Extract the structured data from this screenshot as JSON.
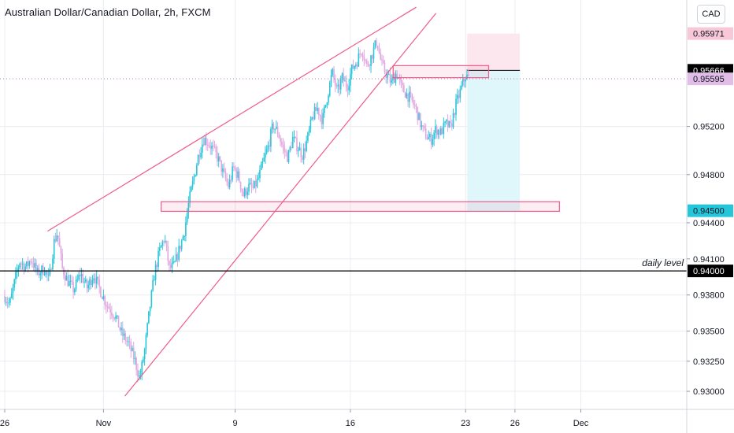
{
  "title": "Australian Dollar/Canadian Dollar, 2h, FXCM",
  "currency": "CAD",
  "colors": {
    "up": "#26c6da",
    "down": "#e1a6e0",
    "line": "#ef5b8a",
    "level": "#000000",
    "grid": "#e9ecf0",
    "target_zone": "#dff6fa",
    "stop_zone": "#fde7ef"
  },
  "chart_data": {
    "type": "candlestick",
    "x_tick_labels": [
      {
        "label": "26",
        "day": 0
      },
      {
        "label": "Nov",
        "day": 6
      },
      {
        "label": "9",
        "day": 14
      },
      {
        "label": "16",
        "day": 21
      },
      {
        "label": "23",
        "day": 28
      },
      {
        "label": "26",
        "day": 31
      },
      {
        "label": "Dec",
        "day": 35
      }
    ],
    "y_ticks": [
      0.93,
      0.9325,
      0.935,
      0.938,
      0.941,
      0.944,
      0.948,
      0.952
    ],
    "y_range": [
      0.9285,
      0.9625
    ],
    "price_labels": [
      {
        "text": "0.95971",
        "value": 0.95971,
        "bg": "#f8c7d8",
        "fg": "#131722"
      },
      {
        "text": "0.95666",
        "value": 0.95666,
        "bg": "#000000",
        "fg": "#ffffff"
      },
      {
        "text": "0.95595",
        "value": 0.95595,
        "bg": "#e1bde8",
        "fg": "#131722"
      },
      {
        "text": "0.94500",
        "value": 0.945,
        "bg": "#26c6da",
        "fg": "#131722"
      },
      {
        "text": "0.94000",
        "value": 0.94,
        "bg": "#000000",
        "fg": "#ffffff"
      }
    ],
    "daily_level": {
      "label": "daily level",
      "value": 0.94
    },
    "current_price": 0.95595,
    "position": {
      "entry": 0.95666,
      "stop": 0.95971,
      "target": 0.945,
      "start_day": 28.1,
      "end_day": 31.3
    },
    "zones": [
      {
        "from_day": 23.6,
        "to_day": 29.4,
        "low": 0.95605,
        "high": 0.95705
      },
      {
        "from_day": 9.5,
        "to_day": 33.7,
        "low": 0.94495,
        "high": 0.94575
      }
    ],
    "trendlines": [
      {
        "x1": 2.6,
        "y1": 0.9433,
        "x2": 25.0,
        "y2": 0.9619
      },
      {
        "x1": 7.3,
        "y1": 0.9296,
        "x2": 26.2,
        "y2": 0.9614
      }
    ],
    "price_path": [
      [
        0,
        0.9379
      ],
      [
        0.3,
        0.9372
      ],
      [
        0.6,
        0.9391
      ],
      [
        0.9,
        0.9408
      ],
      [
        1.3,
        0.9403
      ],
      [
        1.6,
        0.941
      ],
      [
        2.0,
        0.9398
      ],
      [
        2.4,
        0.9402
      ],
      [
        2.7,
        0.9392
      ],
      [
        3.0,
        0.9424
      ],
      [
        3.2,
        0.9432
      ],
      [
        3.5,
        0.9402
      ],
      [
        3.8,
        0.9392
      ],
      [
        4.2,
        0.9384
      ],
      [
        4.6,
        0.9398
      ],
      [
        5.0,
        0.9386
      ],
      [
        5.4,
        0.9397
      ],
      [
        5.8,
        0.9384
      ],
      [
        6.2,
        0.9372
      ],
      [
        6.7,
        0.9363
      ],
      [
        7.1,
        0.9348
      ],
      [
        7.5,
        0.934
      ],
      [
        7.9,
        0.9326
      ],
      [
        8.2,
        0.931
      ],
      [
        8.5,
        0.9334
      ],
      [
        8.8,
        0.9368
      ],
      [
        9.1,
        0.9398
      ],
      [
        9.4,
        0.9416
      ],
      [
        9.7,
        0.9428
      ],
      [
        10.0,
        0.9402
      ],
      [
        10.3,
        0.9404
      ],
      [
        10.6,
        0.9418
      ],
      [
        10.9,
        0.9432
      ],
      [
        11.2,
        0.9458
      ],
      [
        11.5,
        0.9478
      ],
      [
        11.8,
        0.9498
      ],
      [
        12.1,
        0.951
      ],
      [
        12.4,
        0.9506
      ],
      [
        12.7,
        0.95
      ],
      [
        13.0,
        0.9492
      ],
      [
        13.3,
        0.948
      ],
      [
        13.6,
        0.947
      ],
      [
        13.9,
        0.9486
      ],
      [
        14.2,
        0.9478
      ],
      [
        14.5,
        0.9463
      ],
      [
        14.8,
        0.947
      ],
      [
        15.1,
        0.9468
      ],
      [
        15.4,
        0.9476
      ],
      [
        15.7,
        0.949
      ],
      [
        16.0,
        0.9503
      ],
      [
        16.3,
        0.9521
      ],
      [
        16.6,
        0.9515
      ],
      [
        16.9,
        0.9502
      ],
      [
        17.2,
        0.9494
      ],
      [
        17.5,
        0.951
      ],
      [
        17.8,
        0.9503
      ],
      [
        18.1,
        0.9496
      ],
      [
        18.4,
        0.951
      ],
      [
        18.7,
        0.9528
      ],
      [
        19.0,
        0.9535
      ],
      [
        19.3,
        0.9525
      ],
      [
        19.6,
        0.9545
      ],
      [
        19.9,
        0.9565
      ],
      [
        20.2,
        0.9548
      ],
      [
        20.5,
        0.956
      ],
      [
        20.8,
        0.9553
      ],
      [
        21.1,
        0.9568
      ],
      [
        21.4,
        0.9574
      ],
      [
        21.7,
        0.9585
      ],
      [
        22.0,
        0.957
      ],
      [
        22.3,
        0.9579
      ],
      [
        22.6,
        0.9591
      ],
      [
        22.9,
        0.9571
      ],
      [
        23.2,
        0.9563
      ],
      [
        23.5,
        0.9556
      ],
      [
        23.8,
        0.9565
      ],
      [
        24.1,
        0.9552
      ],
      [
        24.4,
        0.9547
      ],
      [
        24.7,
        0.9542
      ],
      [
        25.0,
        0.9534
      ],
      [
        25.3,
        0.952
      ],
      [
        25.6,
        0.9512
      ],
      [
        25.9,
        0.9509
      ],
      [
        26.2,
        0.9518
      ],
      [
        26.5,
        0.9515
      ],
      [
        26.8,
        0.9522
      ],
      [
        27.1,
        0.9519
      ],
      [
        27.4,
        0.9538
      ],
      [
        27.7,
        0.955
      ],
      [
        28.0,
        0.9562
      ],
      [
        28.2,
        0.95595
      ]
    ]
  }
}
